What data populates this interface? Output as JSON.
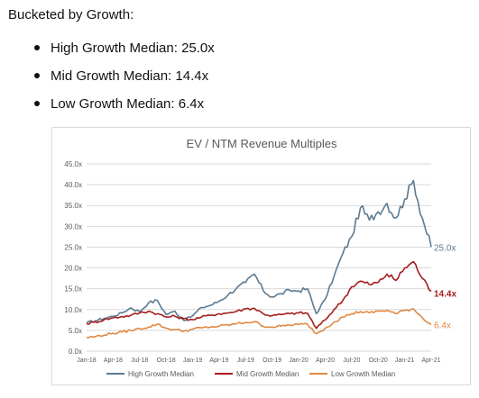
{
  "intro_text": "Bucketed by Growth:",
  "bullets": [
    "High Growth Median: 25.0x",
    "Mid Growth Median: 14.4x",
    "Low Growth Median: 6.4x"
  ],
  "chart_data": {
    "type": "line",
    "title": "EV / NTM Revenue Multiples",
    "xlabel": "",
    "ylabel": "",
    "ylim": [
      0,
      45
    ],
    "yticks": [
      "0.0x",
      "5.0x",
      "10.0x",
      "15.0x",
      "20.0x",
      "25.0x",
      "30.0x",
      "35.0x",
      "40.0x",
      "45.0x"
    ],
    "x_ticks": [
      "Jan-18",
      "Apr-18",
      "Jul-18",
      "Oct-18",
      "Jan-19",
      "Apr-19",
      "Jul-19",
      "Oct-19",
      "Jan-20",
      "Apr-20",
      "Jul-20",
      "Oct-20",
      "Jan-21",
      "Apr-21"
    ],
    "grid": true,
    "legend_position": "bottom",
    "series": [
      {
        "name": "High Growth Median",
        "color": "#5d7a91",
        "end_label": "25.0x",
        "x": [
          "Jan-18",
          "Feb-18",
          "Mar-18",
          "Apr-18",
          "May-18",
          "Jun-18",
          "Jul-18",
          "Aug-18",
          "Sep-18",
          "Oct-18",
          "Nov-18",
          "Dec-18",
          "Jan-19",
          "Feb-19",
          "Mar-19",
          "Apr-19",
          "May-19",
          "Jun-19",
          "Jul-19",
          "Aug-19",
          "Sep-19",
          "Oct-19",
          "Nov-19",
          "Dec-19",
          "Jan-20",
          "Feb-20",
          "Mar-20",
          "Apr-20",
          "May-20",
          "Jun-20",
          "Jul-20",
          "Aug-20",
          "Sep-20",
          "Oct-20",
          "Nov-20",
          "Dec-20",
          "Jan-21",
          "Feb-21",
          "Mar-21",
          "Apr-21"
        ],
        "values": [
          6.8,
          7.3,
          7.9,
          8.4,
          9.2,
          10.4,
          9.5,
          11.6,
          12.2,
          8.8,
          9.6,
          7.4,
          8.5,
          10.5,
          11.0,
          12.0,
          13.5,
          15.2,
          16.5,
          18.5,
          14.5,
          13.0,
          13.8,
          14.6,
          14.5,
          15.0,
          9.0,
          12.5,
          18.0,
          23.5,
          27.5,
          34.5,
          31.5,
          33.5,
          35.5,
          32.0,
          36.5,
          41.0,
          32.0,
          25.0
        ]
      },
      {
        "name": "Mid Growth Median",
        "color": "#a41d1d",
        "end_label": "14.4x",
        "x": [
          "Jan-18",
          "Feb-18",
          "Mar-18",
          "Apr-18",
          "May-18",
          "Jun-18",
          "Jul-18",
          "Aug-18",
          "Sep-18",
          "Oct-18",
          "Nov-18",
          "Dec-18",
          "Jan-19",
          "Feb-19",
          "Mar-19",
          "Apr-19",
          "May-19",
          "Jun-19",
          "Jul-19",
          "Aug-19",
          "Sep-19",
          "Oct-19",
          "Nov-19",
          "Dec-19",
          "Jan-20",
          "Feb-20",
          "Mar-20",
          "Apr-20",
          "May-20",
          "Jun-20",
          "Jul-20",
          "Aug-20",
          "Sep-20",
          "Oct-20",
          "Nov-20",
          "Dec-20",
          "Jan-21",
          "Feb-21",
          "Mar-21",
          "Apr-21"
        ],
        "values": [
          6.6,
          7.0,
          7.6,
          8.0,
          8.3,
          8.6,
          9.2,
          9.6,
          9.0,
          8.2,
          8.4,
          7.8,
          7.6,
          8.2,
          8.6,
          9.0,
          9.2,
          9.6,
          10.2,
          10.3,
          9.0,
          8.5,
          8.8,
          9.0,
          9.2,
          9.1,
          5.5,
          7.5,
          10.0,
          12.2,
          15.5,
          16.8,
          16.0,
          16.5,
          18.5,
          17.0,
          20.0,
          21.5,
          17.5,
          14.4
        ]
      },
      {
        "name": "Low Growth Median",
        "color": "#e08a45",
        "end_label": "6.4x",
        "x": [
          "Jan-18",
          "Feb-18",
          "Mar-18",
          "Apr-18",
          "May-18",
          "Jun-18",
          "Jul-18",
          "Aug-18",
          "Sep-18",
          "Oct-18",
          "Nov-18",
          "Dec-18",
          "Jan-19",
          "Feb-19",
          "Mar-19",
          "Apr-19",
          "May-19",
          "Jun-19",
          "Jul-19",
          "Aug-19",
          "Sep-19",
          "Oct-19",
          "Nov-19",
          "Dec-19",
          "Jan-20",
          "Feb-20",
          "Mar-20",
          "Apr-20",
          "May-20",
          "Jun-20",
          "Jul-20",
          "Aug-20",
          "Sep-20",
          "Oct-20",
          "Nov-20",
          "Dec-20",
          "Jan-21",
          "Feb-21",
          "Mar-21",
          "Apr-21"
        ],
        "values": [
          3.3,
          3.5,
          3.9,
          4.3,
          4.6,
          5.0,
          5.4,
          5.8,
          6.5,
          5.5,
          5.2,
          4.8,
          5.3,
          5.6,
          5.8,
          6.0,
          6.3,
          6.6,
          6.9,
          7.1,
          6.0,
          5.8,
          6.0,
          6.3,
          6.4,
          6.5,
          4.2,
          5.5,
          7.0,
          8.2,
          9.0,
          9.5,
          9.2,
          9.6,
          9.8,
          9.0,
          9.8,
          10.2,
          8.0,
          6.4
        ]
      }
    ]
  }
}
